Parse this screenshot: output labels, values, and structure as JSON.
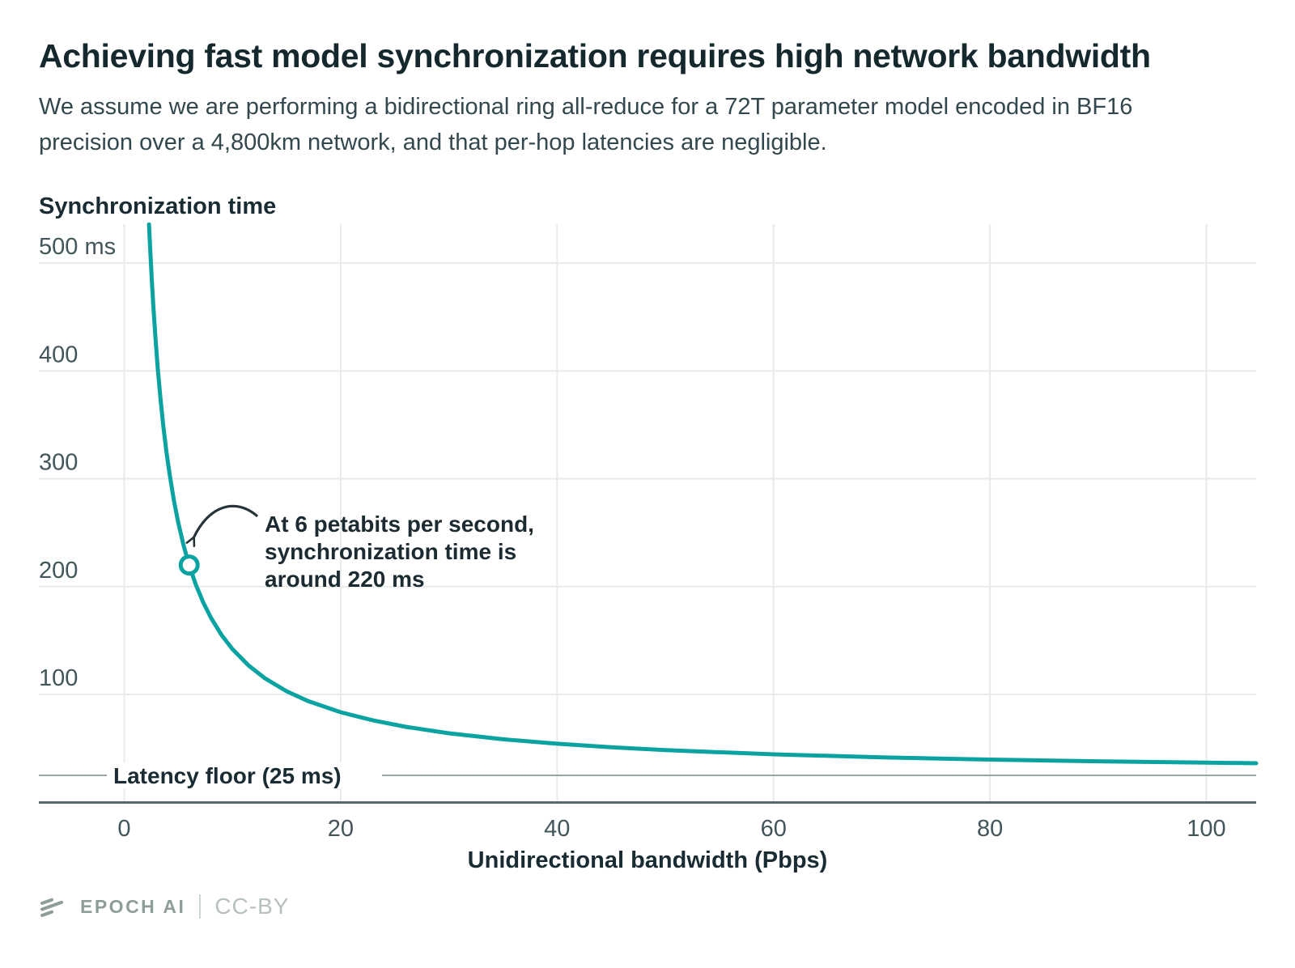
{
  "chart_data": {
    "type": "line",
    "title": "Achieving fast model synchronization requires high network bandwidth",
    "subtitle": "We assume we are performing a bidirectional ring all-reduce for a 72T parameter model encoded in BF16 precision over a 4,800km network, and that per-hop latencies are negligible.",
    "ylabel": "Synchronization time",
    "xlabel": "Unidirectional bandwidth (Pbps)",
    "x_ticks": [
      0,
      20,
      40,
      60,
      80,
      100
    ],
    "y_ticks": [
      {
        "value": 500,
        "label": "500 ms"
      },
      {
        "value": 400,
        "label": "400"
      },
      {
        "value": 300,
        "label": "300"
      },
      {
        "value": 200,
        "label": "200"
      },
      {
        "value": 100,
        "label": "100"
      }
    ],
    "xlim": [
      -7.9,
      104.6
    ],
    "ylim": [
      0,
      536
    ],
    "grid": true,
    "legend": "none",
    "series": [
      {
        "name": "Synchronization time (ms)",
        "color": "#0aa3a1",
        "x": [
          2.29,
          2.4,
          2.55,
          2.7,
          2.9,
          3.1,
          3.35,
          3.6,
          3.9,
          4.2,
          4.6,
          5,
          5.5,
          6,
          6.6,
          7.3,
          8,
          9,
          10,
          11.5,
          13,
          15,
          17,
          20,
          23,
          26,
          30,
          35,
          40,
          45,
          50,
          60,
          70,
          80,
          90,
          100,
          104.6
        ],
        "y": [
          535.9,
          512.5,
          483.8,
          458.3,
          428.4,
          402.4,
          374.2,
          350,
          325,
          303.6,
          279.3,
          259,
          237.7,
          220,
          202.3,
          185.3,
          171.3,
          155,
          142,
          126.7,
          115,
          103,
          93.8,
          83.5,
          75.9,
          70,
          64,
          58.4,
          54.3,
          51,
          48.4,
          44.5,
          41.7,
          39.6,
          38,
          36.7,
          36.2
        ]
      }
    ],
    "floor": {
      "label": "Latency floor (25 ms)",
      "value": 25
    },
    "annotation": {
      "lines": [
        "At 6 petabits per second,",
        "synchronization time is",
        "around 220 ms"
      ],
      "point": {
        "x": 6,
        "y": 220
      }
    }
  },
  "footer": {
    "brand": "EPOCH AI",
    "license": "CC-BY"
  },
  "colors": {
    "accent": "#0aa3a1",
    "title_text": "#15282e",
    "body_text": "#33474e",
    "tick_text": "#42555b",
    "grid": "#e9eaea",
    "floor_line": "#9aa4a4",
    "axis_line": "#566a6f",
    "arrow": "#243439",
    "brand_text": "#8e9d97",
    "license_text": "#b6c1bb"
  }
}
